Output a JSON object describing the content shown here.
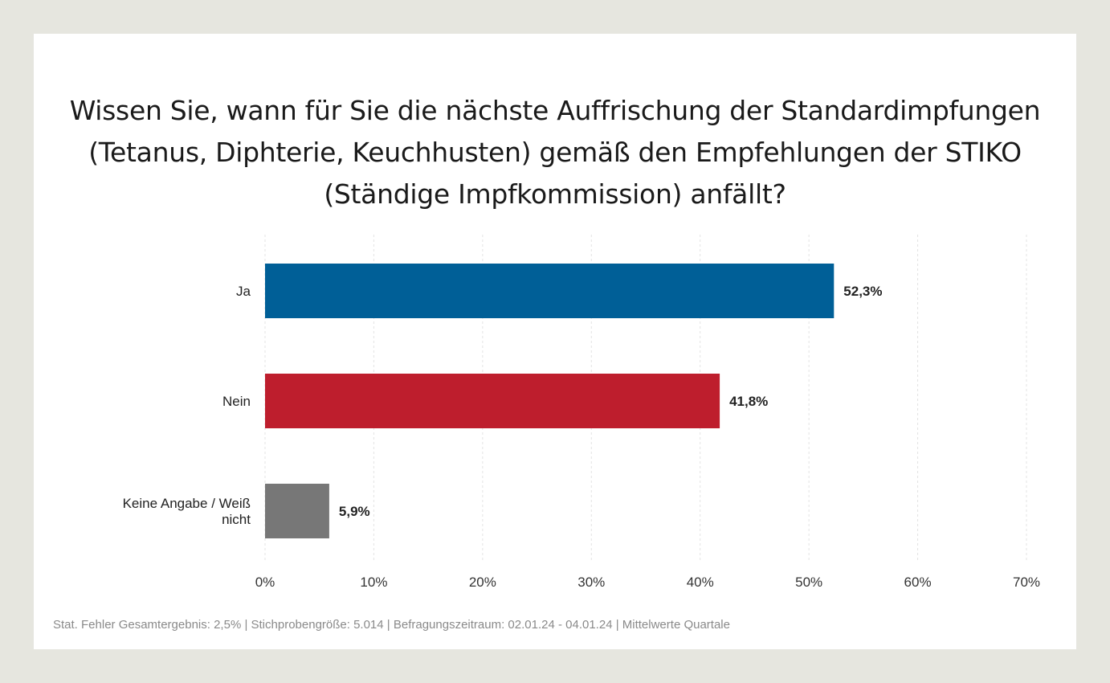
{
  "title_lines": [
    "Wissen Sie, wann für Sie die nächste Auffrischung der Standardimpfungen",
    "(Tetanus, Diphterie, Keuchhusten) gemäß den Empfehlungen der STIKO",
    "(Ständige Impfkommission) anfällt?"
  ],
  "footer": "Stat. Fehler Gesamtergebnis: 2,5% | Stichprobengröße: 5.014 | Befragungszeitraum: 02.01.24 - 04.01.24 | Mittelwerte Quartale",
  "chart_data": {
    "type": "bar",
    "orientation": "horizontal",
    "title": "Wissen Sie, wann für Sie die nächste Auffrischung der Standardimpfungen (Tetanus, Diphterie, Keuchhusten) gemäß den Empfehlungen der STIKO (Ständige Impfkommission) anfällt?",
    "categories": [
      [
        "Ja"
      ],
      [
        "Nein"
      ],
      [
        "Keine Angabe / Weiß",
        "nicht"
      ]
    ],
    "values": [
      52.3,
      41.8,
      5.9
    ],
    "value_labels": [
      "52,3%",
      "41,8%",
      "5,9%"
    ],
    "colors": [
      "#005f97",
      "#be1e2d",
      "#777777"
    ],
    "xlim": [
      0,
      70
    ],
    "x_ticks": [
      0,
      10,
      20,
      30,
      40,
      50,
      60,
      70
    ],
    "x_tick_labels": [
      "0%",
      "10%",
      "20%",
      "30%",
      "40%",
      "50%",
      "60%",
      "70%"
    ],
    "grid": true,
    "legend": "none"
  }
}
